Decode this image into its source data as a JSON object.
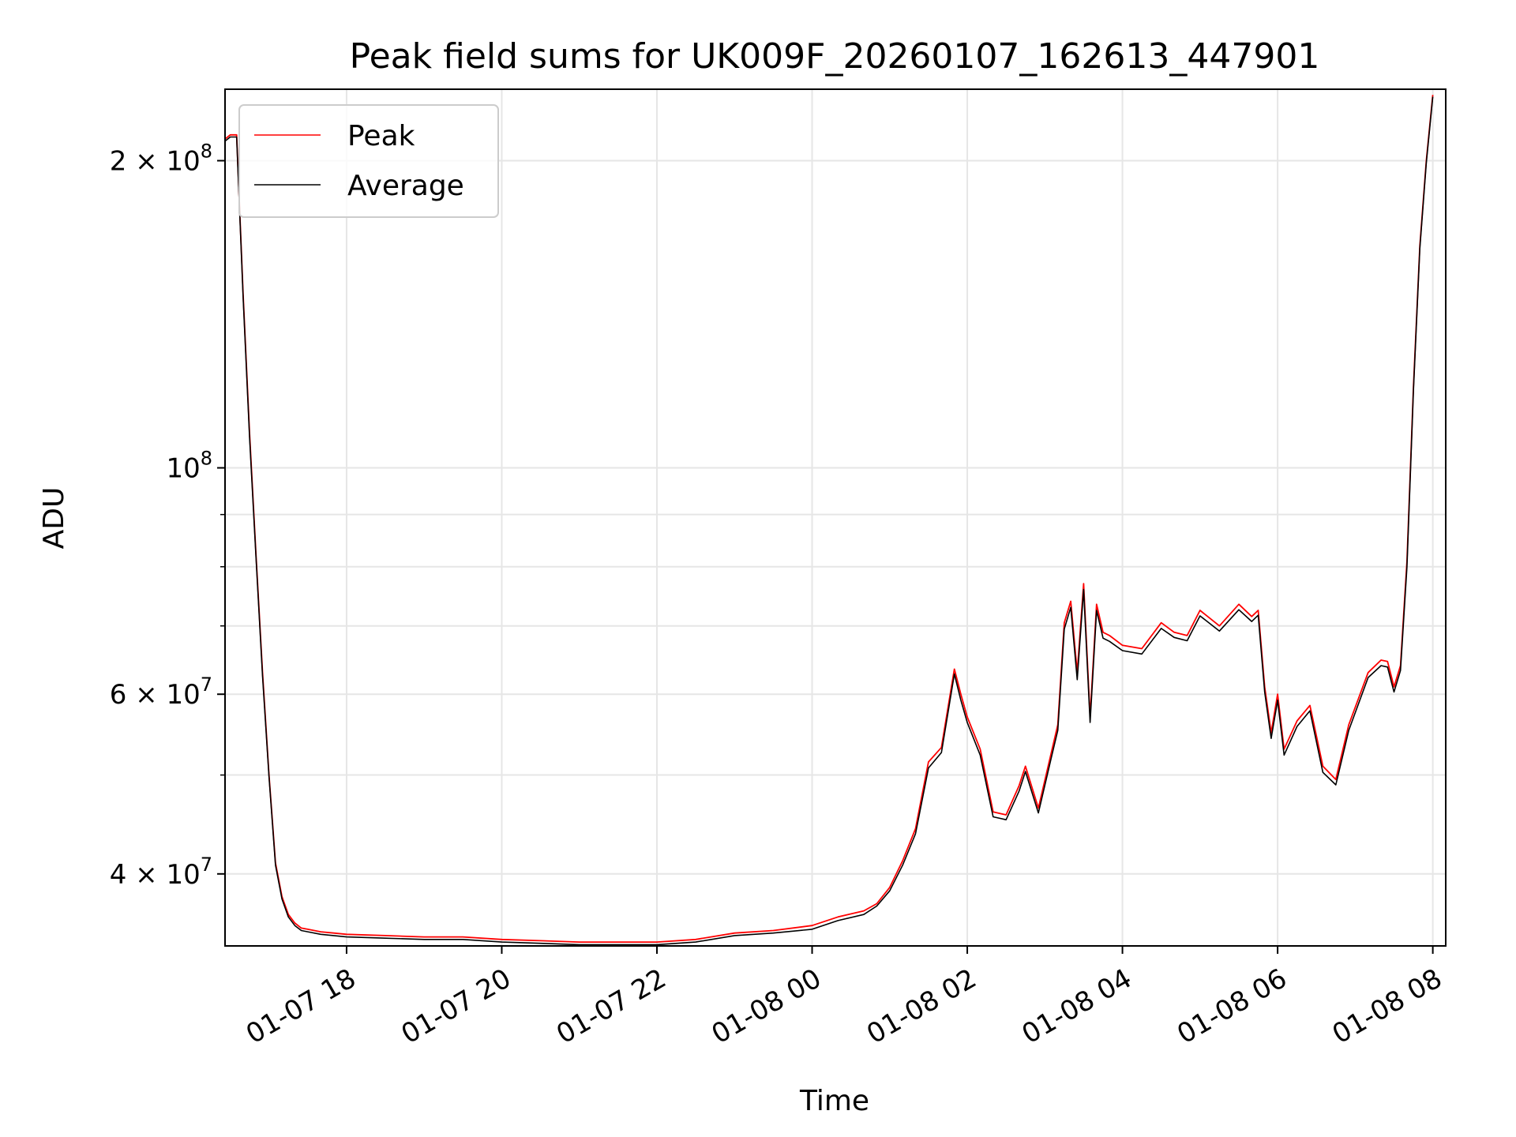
{
  "chart_data": {
    "type": "line",
    "title": "Peak field sums for UK009F_20260107_162613_447901",
    "xlabel": "Time",
    "ylabel": "ADU",
    "x_scale": "time",
    "y_scale": "log",
    "xlim": [
      "2026-01-07 16:26",
      "2026-01-08 08:10"
    ],
    "ylim": [
      34000000,
      235000000
    ],
    "grid": true,
    "legend": "upper left",
    "x_ticks": [
      {
        "t": "2026-01-07 18:00",
        "label": "01-07 18"
      },
      {
        "t": "2026-01-07 20:00",
        "label": "01-07 20"
      },
      {
        "t": "2026-01-07 22:00",
        "label": "01-07 22"
      },
      {
        "t": "2026-01-08 00:00",
        "label": "01-08 00"
      },
      {
        "t": "2026-01-08 02:00",
        "label": "01-08 02"
      },
      {
        "t": "2026-01-08 04:00",
        "label": "01-08 04"
      },
      {
        "t": "2026-01-08 06:00",
        "label": "01-08 06"
      },
      {
        "t": "2026-01-08 08:00",
        "label": "01-08 08"
      }
    ],
    "y_ticks": [
      {
        "value": 40000000,
        "mantissa": "4 × 10",
        "exp": "7"
      },
      {
        "value": 60000000,
        "mantissa": "6 × 10",
        "exp": "7"
      },
      {
        "value": 100000000,
        "mantissa": "10",
        "exp": "8"
      },
      {
        "value": 200000000,
        "mantissa": "2 × 10",
        "exp": "8"
      }
    ],
    "y_minor": [
      50000000,
      70000000,
      80000000,
      90000000
    ],
    "series": [
      {
        "name": "Peak",
        "color": "#ff0000",
        "x": [
          "2026-01-07 16:26",
          "2026-01-07 16:30",
          "2026-01-07 16:35",
          "2026-01-07 16:40",
          "2026-01-07 16:45",
          "2026-01-07 16:50",
          "2026-01-07 16:55",
          "2026-01-07 17:00",
          "2026-01-07 17:05",
          "2026-01-07 17:10",
          "2026-01-07 17:15",
          "2026-01-07 17:20",
          "2026-01-07 17:25",
          "2026-01-07 17:30",
          "2026-01-07 17:40",
          "2026-01-07 17:50",
          "2026-01-07 18:00",
          "2026-01-07 18:30",
          "2026-01-07 19:00",
          "2026-01-07 19:30",
          "2026-01-07 20:00",
          "2026-01-07 20:30",
          "2026-01-07 21:00",
          "2026-01-07 21:30",
          "2026-01-07 22:00",
          "2026-01-07 22:30",
          "2026-01-07 23:00",
          "2026-01-07 23:30",
          "2026-01-08 00:00",
          "2026-01-08 00:20",
          "2026-01-08 00:40",
          "2026-01-08 00:50",
          "2026-01-08 01:00",
          "2026-01-08 01:10",
          "2026-01-08 01:20",
          "2026-01-08 01:30",
          "2026-01-08 01:40",
          "2026-01-08 01:50",
          "2026-01-08 01:55",
          "2026-01-08 02:00",
          "2026-01-08 02:10",
          "2026-01-08 02:20",
          "2026-01-08 02:30",
          "2026-01-08 02:40",
          "2026-01-08 02:45",
          "2026-01-08 02:55",
          "2026-01-08 03:05",
          "2026-01-08 03:10",
          "2026-01-08 03:15",
          "2026-01-08 03:20",
          "2026-01-08 03:25",
          "2026-01-08 03:30",
          "2026-01-08 03:35",
          "2026-01-08 03:40",
          "2026-01-08 03:45",
          "2026-01-08 03:50",
          "2026-01-08 04:00",
          "2026-01-08 04:15",
          "2026-01-08 04:30",
          "2026-01-08 04:40",
          "2026-01-08 04:50",
          "2026-01-08 05:00",
          "2026-01-08 05:15",
          "2026-01-08 05:30",
          "2026-01-08 05:40",
          "2026-01-08 05:45",
          "2026-01-08 05:50",
          "2026-01-08 05:55",
          "2026-01-08 06:00",
          "2026-01-08 06:05",
          "2026-01-08 06:15",
          "2026-01-08 06:25",
          "2026-01-08 06:35",
          "2026-01-08 06:45",
          "2026-01-08 06:55",
          "2026-01-08 07:10",
          "2026-01-08 07:20",
          "2026-01-08 07:25",
          "2026-01-08 07:30",
          "2026-01-08 07:35",
          "2026-01-08 07:40",
          "2026-01-08 07:45",
          "2026-01-08 07:50",
          "2026-01-08 07:55",
          "2026-01-08 08:00"
        ],
        "values": [
          210000000,
          212000000,
          212000000,
          148000000,
          108000000,
          82000000,
          63000000,
          50000000,
          41000000,
          38000000,
          36500000,
          35800000,
          35400000,
          35300000,
          35100000,
          35000000,
          34900000,
          34800000,
          34700000,
          34700000,
          34500000,
          34400000,
          34300000,
          34300000,
          34300000,
          34500000,
          35000000,
          35200000,
          35600000,
          36300000,
          36800000,
          37400000,
          38800000,
          41200000,
          44300000,
          51500000,
          53200000,
          63500000,
          60000000,
          57000000,
          53000000,
          46000000,
          45700000,
          48800000,
          51000000,
          46400000,
          52600000,
          56000000,
          70500000,
          74000000,
          63000000,
          77000000,
          57000000,
          73500000,
          69000000,
          68500000,
          67000000,
          66500000,
          70500000,
          69000000,
          68500000,
          72500000,
          70000000,
          73500000,
          71500000,
          72500000,
          61000000,
          55000000,
          60000000,
          53000000,
          56500000,
          58500000,
          51000000,
          49500000,
          56000000,
          63000000,
          64800000,
          64600000,
          61000000,
          64000000,
          81000000,
          120000000,
          165000000,
          200000000,
          232000000
        ]
      },
      {
        "name": "Average",
        "color": "#000000",
        "x": [
          "2026-01-07 16:26",
          "2026-01-07 16:30",
          "2026-01-07 16:35",
          "2026-01-07 16:40",
          "2026-01-07 16:45",
          "2026-01-07 16:50",
          "2026-01-07 16:55",
          "2026-01-07 17:00",
          "2026-01-07 17:05",
          "2026-01-07 17:10",
          "2026-01-07 17:15",
          "2026-01-07 17:20",
          "2026-01-07 17:25",
          "2026-01-07 17:30",
          "2026-01-07 17:40",
          "2026-01-07 17:50",
          "2026-01-07 18:00",
          "2026-01-07 18:30",
          "2026-01-07 19:00",
          "2026-01-07 19:30",
          "2026-01-07 20:00",
          "2026-01-07 20:30",
          "2026-01-07 21:00",
          "2026-01-07 21:30",
          "2026-01-07 22:00",
          "2026-01-07 22:30",
          "2026-01-07 23:00",
          "2026-01-07 23:30",
          "2026-01-08 00:00",
          "2026-01-08 00:20",
          "2026-01-08 00:40",
          "2026-01-08 00:50",
          "2026-01-08 01:00",
          "2026-01-08 01:10",
          "2026-01-08 01:20",
          "2026-01-08 01:30",
          "2026-01-08 01:40",
          "2026-01-08 01:50",
          "2026-01-08 01:55",
          "2026-01-08 02:00",
          "2026-01-08 02:10",
          "2026-01-08 02:20",
          "2026-01-08 02:30",
          "2026-01-08 02:40",
          "2026-01-08 02:45",
          "2026-01-08 02:55",
          "2026-01-08 03:05",
          "2026-01-08 03:10",
          "2026-01-08 03:15",
          "2026-01-08 03:20",
          "2026-01-08 03:25",
          "2026-01-08 03:30",
          "2026-01-08 03:35",
          "2026-01-08 03:40",
          "2026-01-08 03:45",
          "2026-01-08 03:50",
          "2026-01-08 04:00",
          "2026-01-08 04:15",
          "2026-01-08 04:30",
          "2026-01-08 04:40",
          "2026-01-08 04:50",
          "2026-01-08 05:00",
          "2026-01-08 05:15",
          "2026-01-08 05:30",
          "2026-01-08 05:40",
          "2026-01-08 05:45",
          "2026-01-08 05:50",
          "2026-01-08 05:55",
          "2026-01-08 06:00",
          "2026-01-08 06:05",
          "2026-01-08 06:15",
          "2026-01-08 06:25",
          "2026-01-08 06:35",
          "2026-01-08 06:45",
          "2026-01-08 06:55",
          "2026-01-08 07:10",
          "2026-01-08 07:20",
          "2026-01-08 07:25",
          "2026-01-08 07:30",
          "2026-01-08 07:35",
          "2026-01-08 07:40",
          "2026-01-08 07:45",
          "2026-01-08 07:50",
          "2026-01-08 07:55",
          "2026-01-08 08:00"
        ],
        "values": [
          209000000,
          211000000,
          211000000,
          147000000,
          107000000,
          81500000,
          62500000,
          49800000,
          40800000,
          37800000,
          36300000,
          35600000,
          35200000,
          35100000,
          34900000,
          34800000,
          34700000,
          34600000,
          34500000,
          34500000,
          34300000,
          34200000,
          34100000,
          34100000,
          34100000,
          34300000,
          34800000,
          35000000,
          35300000,
          36000000,
          36500000,
          37200000,
          38500000,
          40800000,
          43800000,
          50800000,
          52600000,
          62800000,
          59200000,
          56300000,
          52300000,
          45500000,
          45200000,
          48200000,
          50400000,
          45900000,
          52000000,
          55300000,
          69500000,
          73000000,
          62000000,
          76000000,
          56300000,
          72500000,
          68100000,
          67600000,
          66200000,
          65700000,
          69600000,
          68200000,
          67700000,
          71600000,
          69200000,
          72600000,
          70700000,
          71700000,
          60300000,
          54300000,
          59200000,
          52300000,
          55800000,
          57800000,
          50300000,
          48900000,
          55300000,
          62300000,
          64000000,
          63800000,
          60300000,
          63300000,
          80000000,
          119000000,
          164000000,
          199000000,
          231000000
        ]
      }
    ]
  }
}
